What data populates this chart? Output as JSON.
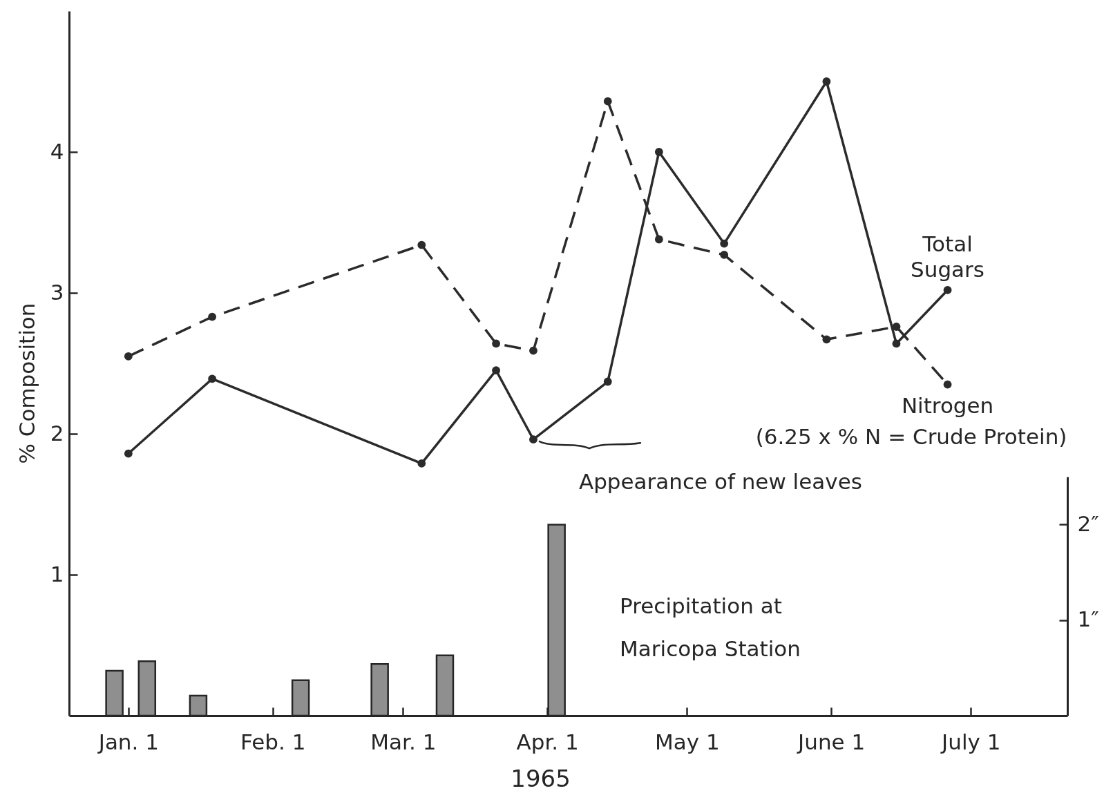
{
  "chart_data": {
    "type": "line",
    "xlabel": "1965",
    "ylabel": "% Composition",
    "x": [
      "1965-01-01",
      "1965-01-19",
      "1965-03-05",
      "1965-03-21",
      "1965-03-29",
      "1965-04-14",
      "1965-04-25",
      "1965-05-09",
      "1965-05-31",
      "1965-06-15",
      "1965-06-26"
    ],
    "xlim": [
      "1964-12-20",
      "1965-07-21"
    ],
    "xticks": [
      {
        "value": "1965-01-01",
        "label": "Jan. 1"
      },
      {
        "value": "1965-02-01",
        "label": "Feb. 1"
      },
      {
        "value": "1965-03-01",
        "label": "Mar. 1"
      },
      {
        "value": "1965-04-01",
        "label": "Apr. 1"
      },
      {
        "value": "1965-05-01",
        "label": "May 1"
      },
      {
        "value": "1965-06-01",
        "label": "June 1"
      },
      {
        "value": "1965-07-01",
        "label": "July 1"
      }
    ],
    "ylim": [
      0,
      5
    ],
    "yticks": [
      1,
      2,
      3,
      4
    ],
    "y2lim": [
      0,
      2.5
    ],
    "y2ticks": [
      {
        "value": 1,
        "label": "1″"
      },
      {
        "value": 2,
        "label": "2″"
      }
    ],
    "marker": "circle",
    "series": [
      {
        "name": "Precipitation at Maricopa Station",
        "type": "bar",
        "axis": "y2",
        "color": "#8f8f8f",
        "x": [
          "1964-12-29",
          "1965-01-05",
          "1965-01-16",
          "1965-02-07",
          "1965-02-24",
          "1965-03-10",
          "1965-04-03"
        ],
        "values": [
          0.47,
          0.57,
          0.21,
          0.37,
          0.54,
          0.63,
          2.0
        ]
      },
      {
        "name": "Total Sugars",
        "color": "#2b2b2b",
        "line_style": "solid",
        "values": [
          1.86,
          2.39,
          1.79,
          2.45,
          1.96,
          2.37,
          4.0,
          3.35,
          4.5,
          2.64,
          3.02
        ]
      },
      {
        "name": "Nitrogen",
        "color": "#2b2b2b",
        "line_style": "dashed",
        "values": [
          2.55,
          2.83,
          3.34,
          2.64,
          2.59,
          4.36,
          3.38,
          3.27,
          2.67,
          2.76,
          2.35
        ]
      }
    ],
    "annotations": [
      "(6.25 x % N = Crude Protein)",
      {
        "text": "Appearance of new leaves",
        "x": "1965-03-29",
        "y": 1.96
      }
    ]
  }
}
